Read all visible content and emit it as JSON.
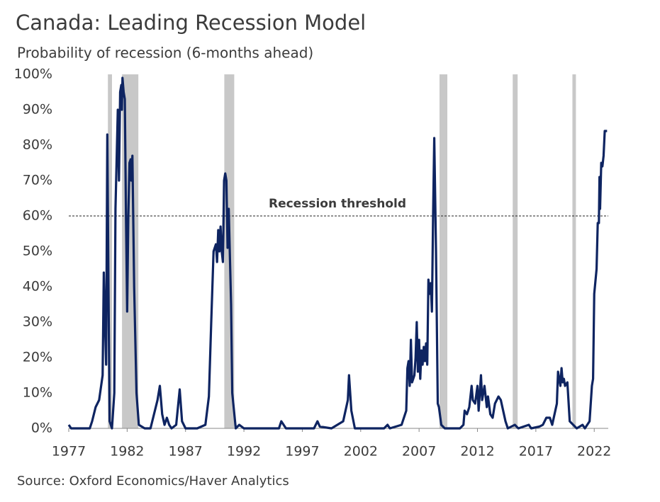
{
  "chart_data": {
    "type": "line",
    "title": "Canada: Leading Recession Model",
    "subtitle": "Probability of recession (6-months ahead)",
    "source": "Source: Oxford Economics/Haver Analytics",
    "color": "#0e2461",
    "shade_color": "#c8c8c8",
    "shaded_ranges": [
      [
        1980.35,
        1980.7
      ],
      [
        1981.56,
        1982.96
      ],
      [
        1990.32,
        1991.17
      ],
      [
        2008.75,
        2009.42
      ],
      [
        2015.02,
        2015.44
      ],
      [
        2020.13,
        2020.43
      ]
    ],
    "threshold": {
      "value": 60,
      "label": "Recession threshold"
    },
    "xlim": [
      1977,
      2023.2
    ],
    "xticks": [
      1977,
      1982,
      1987,
      1992,
      1997,
      2002,
      2007,
      2012,
      2017,
      2022
    ],
    "ylim": [
      0,
      100
    ],
    "yticks": [
      {
        "value": 0,
        "label": "0%"
      },
      {
        "value": 10,
        "label": "10%"
      },
      {
        "value": 20,
        "label": "20%"
      },
      {
        "value": 30,
        "label": "30%"
      },
      {
        "value": 40,
        "label": "40%"
      },
      {
        "value": 50,
        "label": "50%"
      },
      {
        "value": 60,
        "label": "60%"
      },
      {
        "value": 70,
        "label": "70%"
      },
      {
        "value": 80,
        "label": "80%"
      },
      {
        "value": 90,
        "label": "90%"
      },
      {
        "value": 100,
        "label": "100%"
      }
    ],
    "x": [
      1977.0,
      1977.2,
      1978.0,
      1978.8,
      1979.0,
      1979.3,
      1979.6,
      1979.9,
      1980.0,
      1980.1,
      1980.2,
      1980.3,
      1980.4,
      1980.5,
      1980.7,
      1980.9,
      1981.0,
      1981.2,
      1981.3,
      1981.4,
      1981.5,
      1981.55,
      1981.6,
      1981.7,
      1981.8,
      1981.9,
      1982.0,
      1982.1,
      1982.2,
      1982.3,
      1982.35,
      1982.45,
      1982.6,
      1982.8,
      1983.0,
      1983.5,
      1984.0,
      1984.6,
      1984.8,
      1985.0,
      1985.2,
      1985.4,
      1985.6,
      1985.8,
      1986.2,
      1986.5,
      1986.7,
      1987.0,
      1988.0,
      1988.7,
      1989.0,
      1989.2,
      1989.4,
      1989.6,
      1989.7,
      1989.8,
      1989.9,
      1990.0,
      1990.1,
      1990.2,
      1990.3,
      1990.4,
      1990.5,
      1990.6,
      1990.7,
      1990.9,
      1991.0,
      1991.3,
      1991.6,
      1992.0,
      1993.0,
      1995.0,
      1995.2,
      1995.4,
      1995.6,
      1998.0,
      1998.3,
      1998.5,
      1999.5,
      2000.5,
      2000.9,
      2001.0,
      2001.2,
      2001.5,
      2004.0,
      2004.3,
      2004.5,
      2005.5,
      2005.9,
      2006.0,
      2006.1,
      2006.2,
      2006.3,
      2006.4,
      2006.6,
      2006.7,
      2006.8,
      2006.9,
      2007.0,
      2007.1,
      2007.2,
      2007.3,
      2007.4,
      2007.5,
      2007.6,
      2007.7,
      2007.8,
      2007.9,
      2008.0,
      2008.1,
      2008.2,
      2008.3,
      2008.45,
      2008.6,
      2008.7,
      2008.9,
      2009.2,
      2010.5,
      2010.8,
      2010.9,
      2011.1,
      2011.3,
      2011.5,
      2011.6,
      2011.8,
      2012.0,
      2012.1,
      2012.3,
      2012.4,
      2012.6,
      2012.8,
      2012.9,
      2013.1,
      2013.3,
      2013.5,
      2013.8,
      2014.0,
      2014.2,
      2014.4,
      2014.6,
      2015.2,
      2015.5,
      2016.4,
      2016.6,
      2017.3,
      2017.6,
      2017.9,
      2018.2,
      2018.4,
      2018.6,
      2018.8,
      2018.9,
      2019.1,
      2019.2,
      2019.3,
      2019.4,
      2019.5,
      2019.7,
      2019.9,
      2020.2,
      2020.5,
      2021.0,
      2021.2,
      2021.4,
      2021.6,
      2021.8,
      2021.9,
      2022.0,
      2022.2,
      2022.3,
      2022.4,
      2022.45,
      2022.5,
      2022.6,
      2022.7,
      2022.8,
      2022.9,
      2023.1
    ],
    "values": [
      1,
      0,
      0,
      0,
      2,
      6,
      8,
      15,
      44,
      30,
      18,
      83,
      40,
      2,
      0,
      10,
      62,
      90,
      70,
      95,
      97,
      90,
      99,
      95,
      93,
      60,
      33,
      60,
      75,
      76,
      70,
      77,
      40,
      10,
      1,
      0,
      0,
      8,
      12,
      4,
      1,
      3,
      1,
      0,
      1,
      11,
      2,
      0,
      0,
      1,
      9,
      30,
      50,
      52,
      47,
      56,
      50,
      57,
      50,
      47,
      70,
      72,
      70,
      51,
      62,
      35,
      10,
      0,
      1,
      0,
      0,
      0,
      2,
      1,
      0,
      0,
      2,
      0.5,
      0,
      2,
      8,
      15,
      5,
      0,
      0,
      1,
      0,
      1,
      5,
      17,
      19,
      12,
      25,
      13,
      15,
      20,
      30,
      16,
      25,
      14,
      22,
      18,
      23,
      19,
      24,
      18,
      42,
      38,
      41,
      33,
      60,
      82,
      50,
      7,
      6,
      1,
      0,
      0,
      1,
      5,
      4,
      6,
      12,
      8,
      7,
      12,
      5,
      15,
      8,
      12,
      6,
      9,
      4,
      3,
      7,
      9,
      8,
      5,
      2,
      0,
      1,
      0,
      1,
      0,
      0.5,
      1,
      3,
      3,
      1,
      4,
      7,
      16,
      12,
      17,
      13,
      14,
      12,
      13,
      2,
      1,
      0,
      1,
      0,
      1,
      2,
      12,
      14,
      38,
      45,
      58,
      58,
      71,
      62,
      75,
      74,
      77,
      84,
      84
    ]
  }
}
